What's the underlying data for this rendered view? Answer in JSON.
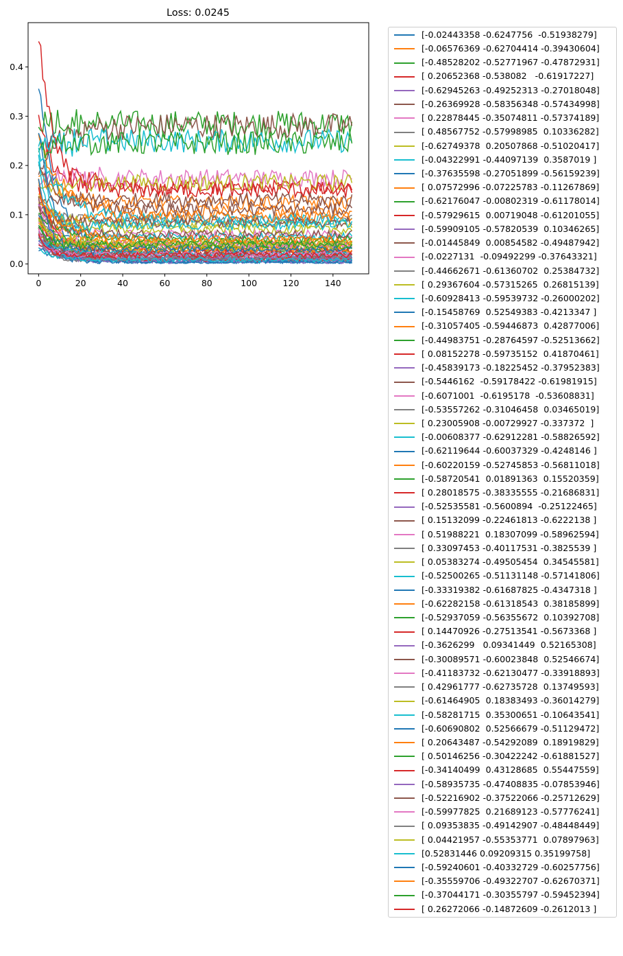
{
  "chart_data": {
    "type": "line",
    "title": "Loss: 0.0245",
    "xlabel": "",
    "ylabel": "",
    "xlim": [
      -5,
      157
    ],
    "ylim": [
      -0.02,
      0.49
    ],
    "xticks": [
      0,
      20,
      40,
      60,
      80,
      100,
      120,
      140
    ],
    "yticks": [
      0.0,
      0.1,
      0.2,
      0.3,
      0.4
    ],
    "xtick_labels": [
      "0",
      "20",
      "40",
      "60",
      "80",
      "100",
      "120",
      "140"
    ],
    "ytick_labels": [
      "0.0",
      "0.1",
      "0.2",
      "0.3",
      "0.4"
    ],
    "grid": false,
    "legend_position": "outside-right",
    "n_points": 150,
    "palette": [
      "#1f77b4",
      "#ff7f0e",
      "#2ca02c",
      "#d62728",
      "#9467bd",
      "#8c564b",
      "#e377c2",
      "#7f7f7f",
      "#bcbd22",
      "#17becf"
    ],
    "series": [
      {
        "name": "[-0.02443358 -0.6247756  -0.51938279]",
        "start": 0.36,
        "end": 0.015
      },
      {
        "name": "[-0.06576369 -0.62704414 -0.39430604]",
        "start": 0.26,
        "end": 0.105
      },
      {
        "name": "[-0.48528202 -0.52771967 -0.47872931]",
        "start": 0.3,
        "end": 0.285
      },
      {
        "name": "[ 0.20652368 -0.538082   -0.61917227]",
        "start": 0.29,
        "end": 0.155
      },
      {
        "name": "[-0.62945263 -0.49252313 -0.27018048]",
        "start": 0.12,
        "end": 0.01
      },
      {
        "name": "[-0.26369928 -0.58356348 -0.57434998]",
        "start": 0.2,
        "end": 0.28
      },
      {
        "name": "[ 0.22878445 -0.35074811 -0.57374189]",
        "start": 0.17,
        "end": 0.175
      },
      {
        "name": "[ 0.48567752 -0.57998985  0.10336282]",
        "start": 0.1,
        "end": 0.09
      },
      {
        "name": "[-0.62749378  0.20507868 -0.51020417]",
        "start": 0.15,
        "end": 0.165
      },
      {
        "name": "[-0.04322991 -0.44097139  0.3587019 ]",
        "start": 0.25,
        "end": 0.25
      },
      {
        "name": "[-0.37635598 -0.27051899 -0.56159239]",
        "start": 0.27,
        "end": 0.003
      },
      {
        "name": "[ 0.07572996 -0.07225783 -0.11267869]",
        "start": 0.18,
        "end": 0.125
      },
      {
        "name": "[-0.62176047 -0.00802319 -0.61178014]",
        "start": 0.21,
        "end": 0.245
      },
      {
        "name": "[-0.57929615  0.00719048 -0.61201055]",
        "start": 0.47,
        "end": 0.15
      },
      {
        "name": "[-0.59909105 -0.57820539  0.10346265]",
        "start": 0.08,
        "end": 0.02
      },
      {
        "name": "[-0.01445849  0.00854582 -0.49487942]",
        "start": 0.11,
        "end": 0.13
      },
      {
        "name": "[-0.0227131  -0.09492299 -0.37643321]",
        "start": 0.09,
        "end": 0.06
      },
      {
        "name": "[-0.44662671 -0.61360702  0.25384732]",
        "start": 0.06,
        "end": 0.03
      },
      {
        "name": "[ 0.29367604 -0.57315265  0.26815139]",
        "start": 0.13,
        "end": 0.07
      },
      {
        "name": "[-0.60928413 -0.59539732 -0.26000202]",
        "start": 0.22,
        "end": 0.055
      },
      {
        "name": "[-0.15458769  0.52549383 -0.4213347 ]",
        "start": 0.1,
        "end": 0.005
      },
      {
        "name": "[-0.31057405 -0.59446873  0.42877006]",
        "start": 0.17,
        "end": 0.045
      },
      {
        "name": "[-0.44983751 -0.28764597 -0.52513662]",
        "start": 0.09,
        "end": 0.04
      },
      {
        "name": "[ 0.08152278 -0.59735152  0.41870461]",
        "start": 0.07,
        "end": 0.02
      },
      {
        "name": "[-0.45839173 -0.18225452 -0.37952383]",
        "start": 0.05,
        "end": 0.008
      },
      {
        "name": "[-0.5446162  -0.59178422 -0.61981915]",
        "start": 0.19,
        "end": 0.11
      },
      {
        "name": "[-0.6071001  -0.6195178  -0.53608831]",
        "start": 0.14,
        "end": 0.035
      },
      {
        "name": "[-0.53557262 -0.31046458  0.03465019]",
        "start": 0.06,
        "end": 0.012
      },
      {
        "name": "[ 0.23005908 -0.00729927 -0.337372  ]",
        "start": 0.12,
        "end": 0.08
      },
      {
        "name": "[-0.00608377 -0.62912281 -0.58826592]",
        "start": 0.24,
        "end": 0.09
      },
      {
        "name": "[-0.62119644 -0.60037329 -0.4248146 ]",
        "start": 0.08,
        "end": 0.006
      },
      {
        "name": "[-0.60220159 -0.52745853 -0.56811018]",
        "start": 0.16,
        "end": 0.095
      },
      {
        "name": "[-0.58720541  0.01891363  0.15520359]",
        "start": 0.05,
        "end": 0.03
      },
      {
        "name": "[ 0.28018575 -0.38335555 -0.21686831]",
        "start": 0.1,
        "end": 0.02
      },
      {
        "name": "[-0.52535581 -0.5600894  -0.25122465]",
        "start": 0.07,
        "end": 0.01
      },
      {
        "name": "[ 0.15132099 -0.22461813 -0.6222138 ]",
        "start": 0.13,
        "end": 0.085
      },
      {
        "name": "[ 0.51988221  0.18307099 -0.58962594]",
        "start": 0.04,
        "end": 0.015
      },
      {
        "name": "[ 0.33097453 -0.40117531 -0.3825539 ]",
        "start": 0.09,
        "end": 0.025
      },
      {
        "name": "[ 0.05383274 -0.49505454  0.34545581]",
        "start": 0.06,
        "end": 0.03
      },
      {
        "name": "[-0.52500265 -0.51131148 -0.57141806]",
        "start": 0.2,
        "end": 0.08
      },
      {
        "name": "[-0.33319382 -0.61687825 -0.4347318 ]",
        "start": 0.05,
        "end": 0.01
      },
      {
        "name": "[-0.62282158 -0.61318543  0.38185899]",
        "start": 0.11,
        "end": 0.04
      },
      {
        "name": "[-0.52937059 -0.56355672  0.10392708]",
        "start": 0.08,
        "end": 0.035
      },
      {
        "name": "[ 0.14470926 -0.27513541 -0.5673368 ]",
        "start": 0.15,
        "end": 0.025
      },
      {
        "name": "[-0.3626299   0.09341449  0.52165308]",
        "start": 0.04,
        "end": 0.005
      },
      {
        "name": "[-0.30089571 -0.60023848  0.52546674]",
        "start": 0.07,
        "end": 0.02
      },
      {
        "name": "[-0.41183732 -0.62130477 -0.33918893]",
        "start": 0.12,
        "end": 0.04
      },
      {
        "name": "[ 0.42961777 -0.62735728  0.13749593]",
        "start": 0.06,
        "end": 0.015
      },
      {
        "name": "[-0.61464905  0.18383493 -0.36014279]",
        "start": 0.09,
        "end": 0.045
      },
      {
        "name": "[-0.58281715  0.35300651 -0.10643541]",
        "start": 0.05,
        "end": 0.02
      },
      {
        "name": "[-0.60690802  0.52566679 -0.51129472]",
        "start": 0.03,
        "end": 0.004
      },
      {
        "name": "[ 0.20643487 -0.54292089  0.18919829]",
        "start": 0.08,
        "end": 0.03
      },
      {
        "name": "[ 0.50146256 -0.30422242 -0.61881527]",
        "start": 0.1,
        "end": 0.05
      },
      {
        "name": "[-0.34140499  0.43128685  0.55447559]",
        "start": 0.04,
        "end": 0.01
      },
      {
        "name": "[-0.58935735 -0.47408835 -0.07853946]",
        "start": 0.06,
        "end": 0.012
      },
      {
        "name": "[-0.52216902 -0.37522066 -0.25712629]",
        "start": 0.11,
        "end": 0.06
      },
      {
        "name": "[-0.59977825  0.21689123 -0.57776241]",
        "start": 0.07,
        "end": 0.02
      },
      {
        "name": "[ 0.09353835 -0.49142907 -0.48448449]",
        "start": 0.05,
        "end": 0.01
      },
      {
        "name": "[ 0.04421957 -0.55353771  0.07897963]",
        "start": 0.09,
        "end": 0.04
      },
      {
        "name": "[0.52831446 0.09209315 0.35199758]",
        "start": 0.03,
        "end": 0.008
      },
      {
        "name": "[-0.59240601 -0.40332729 -0.60257756]",
        "start": 0.18,
        "end": 0.03
      },
      {
        "name": "[-0.35559706 -0.49322707 -0.62670371]",
        "start": 0.14,
        "end": 0.05
      },
      {
        "name": "[-0.37044171 -0.30355797 -0.59452394]",
        "start": 0.08,
        "end": 0.04
      },
      {
        "name": "[ 0.26272066 -0.14872609 -0.2612013 ]",
        "start": 0.06,
        "end": 0.018
      }
    ]
  }
}
